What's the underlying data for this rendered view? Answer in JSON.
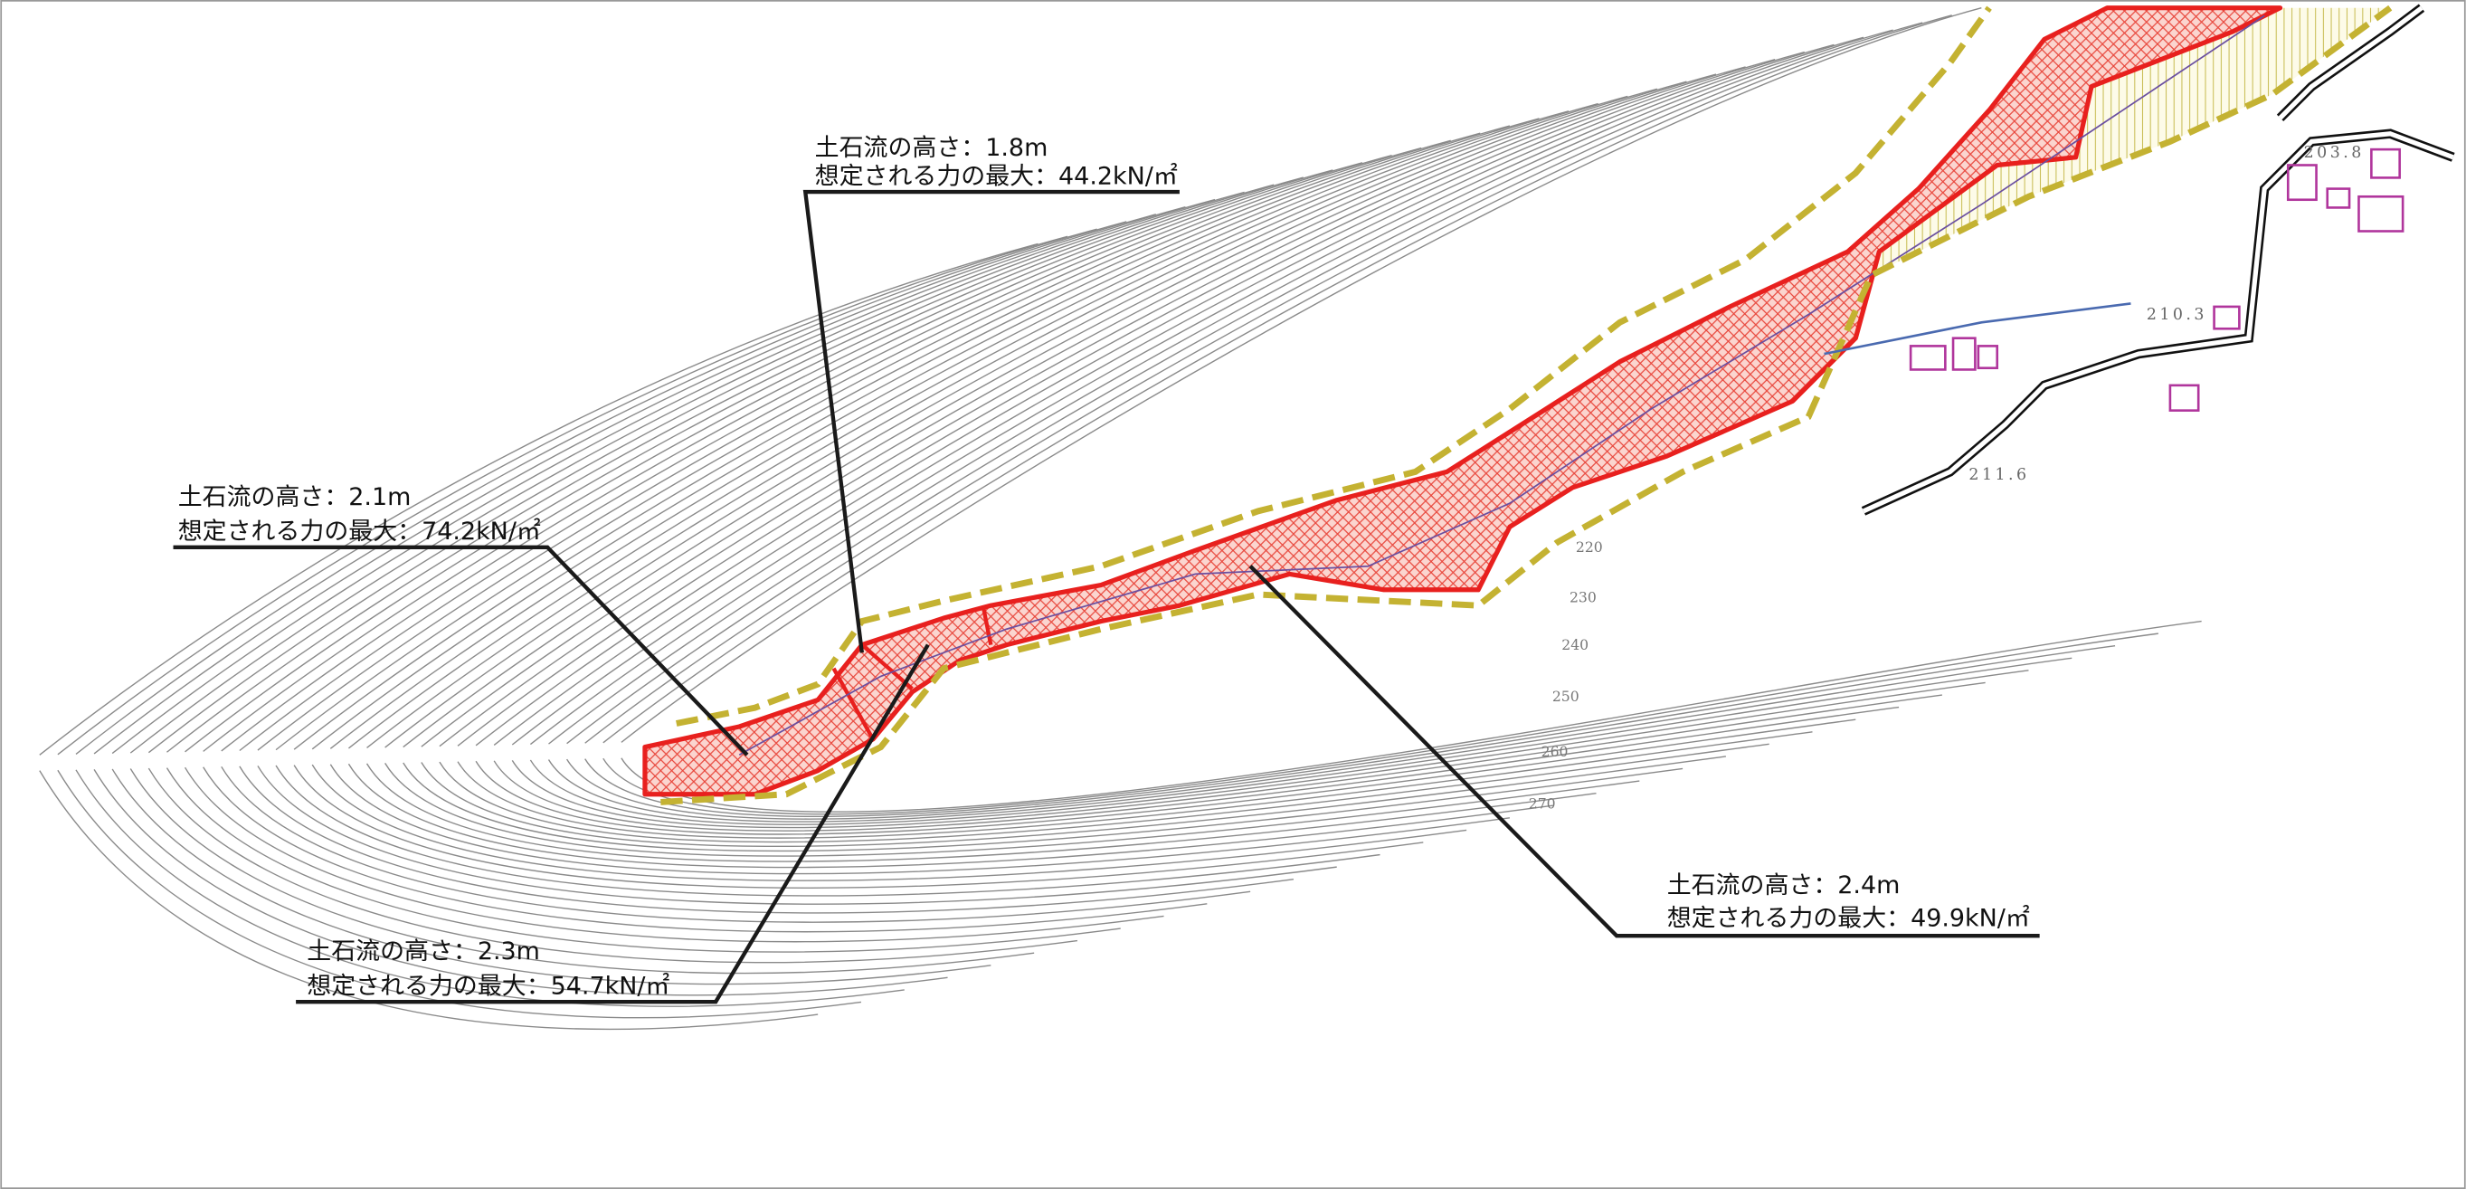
{
  "annotations": [
    {
      "height": "土石流の高さ：1.8m",
      "force": "想定される力の最大：44.2kN/㎡"
    },
    {
      "height": "土石流の高さ：2.1m",
      "force": "想定される力の最大：74.2kN/㎡"
    },
    {
      "height": "土石流の高さ：2.3m",
      "force": "想定される力の最大：54.7kN/㎡"
    },
    {
      "height": "土石流の高さ：2.4m",
      "force": "想定される力の最大：49.9kN/㎡"
    }
  ],
  "spot_heights": [
    "211.6",
    "210.3",
    "203.8"
  ],
  "contour_labels": [
    "220",
    "230",
    "240",
    "250",
    "260",
    "270"
  ]
}
